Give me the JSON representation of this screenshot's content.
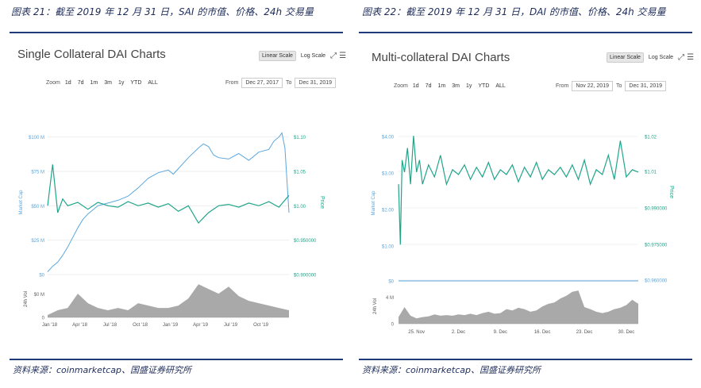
{
  "left": {
    "figure_title": "图表 21：截至 2019 年 12 月 31 日，SAI 的市值、价格、24h 交易量",
    "source": "资料来源：coinmarketcap、国盛证券研究所"
  },
  "right": {
    "figure_title": "图表 22：截至 2019 年 12 月 31 日，DAI 的市值、价格、24h 交易量",
    "source": "资料来源：coinmarketcap、国盛证券研究所"
  },
  "chart_data": [
    {
      "type": "line",
      "title": "Single Collateral DAI Charts",
      "controls": {
        "linear_scale": "Linear Scale",
        "log_scale": "Log Scale",
        "active_scale": "linear",
        "zoom_label": "Zoom",
        "zoom_options": [
          "1d",
          "7d",
          "1m",
          "3m",
          "1y",
          "YTD",
          "ALL"
        ],
        "from_label": "From",
        "from_value": "Dec 27, 2017",
        "to_label": "To",
        "to_value": "Dec 31, 2019"
      },
      "left_axis_label": "Market Cap",
      "right_axis_label": "Price",
      "volume_axis_label": "24h Vol",
      "left_ticks": [
        "$0",
        "$25 M",
        "$50 M",
        "$75 M",
        "$100 M"
      ],
      "left_tick_values": [
        0,
        25,
        50,
        75,
        100
      ],
      "right_ticks": [
        "$0.900000",
        "$0.950000",
        "$1.00",
        "$1.05",
        "$1.10"
      ],
      "right_tick_values": [
        0.9,
        0.95,
        1.0,
        1.05,
        1.1
      ],
      "volume_ticks": [
        "0",
        "$0 M"
      ],
      "x_ticks": [
        "Jan '18",
        "Apr '18",
        "Jul '18",
        "Oct '18",
        "Jan '19",
        "Apr '19",
        "Jul '19",
        "Oct '19"
      ],
      "x_range": [
        0,
        24
      ],
      "x_tick_positions": [
        0.2,
        3.2,
        6.2,
        9.2,
        12.2,
        15.2,
        18.2,
        21.2
      ],
      "ylim_market_cap": [
        0,
        105
      ],
      "ylim_price": [
        0.9,
        1.11
      ],
      "series": [
        {
          "name": "Market Cap",
          "color": "#5aa7de",
          "x": [
            0,
            0.5,
            1,
            1.5,
            2,
            2.5,
            3,
            3.5,
            4,
            5,
            6,
            7,
            8,
            9,
            10,
            11,
            12,
            12.5,
            13,
            14,
            15,
            15.5,
            16,
            16.5,
            17,
            18,
            19,
            20,
            21,
            22,
            22.5,
            23,
            23.3,
            23.6,
            24
          ],
          "values": [
            2,
            6,
            9,
            14,
            20,
            27,
            34,
            40,
            44,
            50,
            52,
            54,
            57,
            63,
            70,
            74,
            76,
            73,
            77,
            85,
            92,
            95,
            93,
            87,
            85,
            84,
            88,
            83,
            89,
            91,
            97,
            100,
            103,
            92,
            45
          ]
        },
        {
          "name": "Price",
          "color": "#1fa58a",
          "x": [
            0,
            0.5,
            1,
            1.5,
            2,
            3,
            4,
            5,
            6,
            7,
            8,
            9,
            10,
            11,
            12,
            13,
            14,
            15,
            16,
            17,
            18,
            19,
            20,
            21,
            22,
            23,
            24
          ],
          "values": [
            1.0,
            1.06,
            0.99,
            1.01,
            1.0,
            1.005,
            0.995,
            1.005,
            1.0,
            0.998,
            1.006,
            1.0,
            1.004,
            0.998,
            1.003,
            0.992,
            1.0,
            0.975,
            0.99,
            1.0,
            1.002,
            0.998,
            1.004,
            1.0,
            1.006,
            0.998,
            1.015
          ]
        },
        {
          "name": "24h Vol",
          "color": "#9a9a9a",
          "x": [
            0,
            1,
            2,
            3,
            4,
            5,
            6,
            7,
            8,
            9,
            10,
            11,
            12,
            13,
            14,
            15,
            16,
            17,
            18,
            19,
            20,
            21,
            22,
            23,
            24
          ],
          "values": [
            0.1,
            0.3,
            0.4,
            1.0,
            0.6,
            0.4,
            0.3,
            0.4,
            0.3,
            0.6,
            0.5,
            0.4,
            0.4,
            0.5,
            0.8,
            1.4,
            1.2,
            1.0,
            1.3,
            0.9,
            0.7,
            0.6,
            0.5,
            0.4,
            0.3
          ]
        }
      ]
    },
    {
      "type": "line",
      "title": "Multi-collateral DAI Charts",
      "controls": {
        "linear_scale": "Linear Scale",
        "log_scale": "Log Scale",
        "active_scale": "linear",
        "zoom_label": "Zoom",
        "zoom_options": [
          "1d",
          "7d",
          "1m",
          "3m",
          "1y",
          "YTD",
          "ALL"
        ],
        "from_label": "From",
        "from_value": "Nov 22, 2019",
        "to_label": "To",
        "to_value": "Dec 31, 2019"
      },
      "left_axis_label": "Market Cap",
      "right_axis_label": "Price",
      "volume_axis_label": "24h Vol",
      "left_ticks": [
        "$1.00",
        "$2.00",
        "$3.00",
        "$4.00"
      ],
      "left_tick_values": [
        1,
        2,
        3,
        4
      ],
      "right_ticks": [
        "$0.960000",
        "$0.975000",
        "$0.990000",
        "$1.01",
        "$1.02"
      ],
      "right_tick_values": [
        0.96,
        0.975,
        0.99,
        1.005,
        1.02
      ],
      "volume_ticks": [
        "$0",
        "4 M",
        "0"
      ],
      "x_ticks": [
        "25. Nov",
        "2. Dec",
        "9. Dec",
        "16. Dec",
        "23. Dec",
        "30. Dec"
      ],
      "x_range": [
        0,
        40
      ],
      "x_tick_positions": [
        3,
        10,
        17,
        24,
        31,
        38
      ],
      "ylim_price": [
        0.96,
        1.025
      ],
      "series": [
        {
          "name": "Price",
          "color": "#1fa58a",
          "x": [
            0,
            0.3,
            0.6,
            1,
            1.5,
            2,
            2.5,
            3,
            3.5,
            4,
            5,
            6,
            7,
            8,
            9,
            10,
            11,
            12,
            13,
            14,
            15,
            16,
            17,
            18,
            19,
            20,
            21,
            22,
            23,
            24,
            25,
            26,
            27,
            28,
            29,
            30,
            31,
            32,
            33,
            34,
            35,
            36,
            37,
            38,
            39,
            40
          ],
          "values": [
            1.0,
            0.975,
            1.01,
            1.005,
            1.015,
            1.0,
            1.02,
            1.005,
            1.01,
            1.0,
            1.008,
            1.003,
            1.012,
            1.0,
            1.006,
            1.004,
            1.008,
            1.002,
            1.007,
            1.003,
            1.009,
            1.002,
            1.006,
            1.004,
            1.008,
            1.001,
            1.007,
            1.003,
            1.009,
            1.002,
            1.006,
            1.004,
            1.007,
            1.003,
            1.008,
            1.002,
            1.01,
            1.0,
            1.006,
            1.004,
            1.012,
            1.002,
            1.018,
            1.003,
            1.006,
            1.005
          ]
        },
        {
          "name": "24h Vol",
          "color": "#9a9a9a",
          "x": [
            0,
            1,
            2,
            3,
            4,
            5,
            6,
            7,
            8,
            9,
            10,
            11,
            12,
            13,
            14,
            15,
            16,
            17,
            18,
            19,
            20,
            21,
            22,
            23,
            24,
            25,
            26,
            27,
            28,
            29,
            30,
            31,
            32,
            33,
            34,
            35,
            36,
            37,
            38,
            39,
            40
          ],
          "values": [
            1.0,
            2.5,
            1.2,
            0.8,
            1.0,
            1.1,
            1.4,
            1.2,
            1.3,
            1.2,
            1.4,
            1.3,
            1.5,
            1.3,
            1.6,
            1.8,
            1.5,
            1.6,
            2.2,
            2.0,
            2.4,
            2.2,
            1.8,
            2.0,
            2.6,
            3.0,
            3.2,
            3.8,
            4.2,
            4.8,
            5.0,
            2.5,
            2.2,
            1.8,
            1.6,
            1.8,
            2.2,
            2.4,
            2.8,
            3.6,
            3.0
          ]
        }
      ]
    }
  ]
}
